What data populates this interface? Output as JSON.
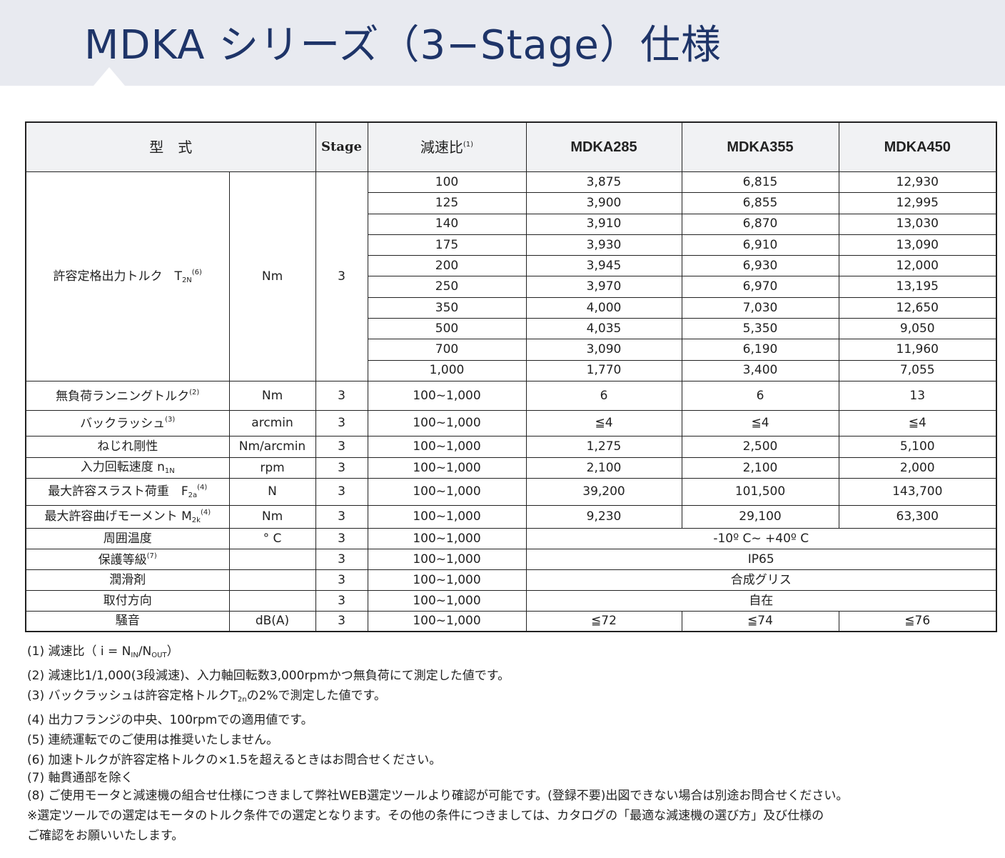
{
  "title": "MDKA シリーズ（3−Stage）仕様",
  "header": {
    "type": "型　式",
    "stage": "Stage",
    "ratio": "減速比",
    "ratio_note": "(1)",
    "models": [
      "MDKA285",
      "MDKA355",
      "MDKA450"
    ]
  },
  "torque": {
    "label": "許容定格出力トルク",
    "symbol": "T",
    "symbol_sub": "2N",
    "note": "(6)",
    "unit": "Nm",
    "stage": "3",
    "rows": [
      {
        "ratio": "100",
        "v": [
          "3,875",
          "6,815",
          "12,930"
        ]
      },
      {
        "ratio": "125",
        "v": [
          "3,900",
          "6,855",
          "12,995"
        ]
      },
      {
        "ratio": "140",
        "v": [
          "3,910",
          "6,870",
          "13,030"
        ]
      },
      {
        "ratio": "175",
        "v": [
          "3,930",
          "6,910",
          "13,090"
        ]
      },
      {
        "ratio": "200",
        "v": [
          "3,945",
          "6,930",
          "12,000"
        ]
      },
      {
        "ratio": "250",
        "v": [
          "3,970",
          "6,970",
          "13,195"
        ]
      },
      {
        "ratio": "350",
        "v": [
          "4,000",
          "7,030",
          "12,650"
        ]
      },
      {
        "ratio": "500",
        "v": [
          "4,035",
          "5,350",
          "9,050"
        ]
      },
      {
        "ratio": "700",
        "v": [
          "3,090",
          "6,190",
          "11,960"
        ]
      },
      {
        "ratio": "1,000",
        "v": [
          "1,770",
          "3,400",
          "7,055"
        ]
      }
    ]
  },
  "specs": [
    {
      "label": "無負荷ランニングトルク",
      "note": "(2)",
      "unit": "Nm",
      "stage": "3",
      "ratio": "100~1,000",
      "v": [
        "6",
        "6",
        "13"
      ]
    },
    {
      "label": "バックラッシュ",
      "note": "(3)",
      "unit": "arcmin",
      "stage": "3",
      "ratio": "100~1,000",
      "v": [
        "≦4",
        "≦4",
        "≦4"
      ]
    },
    {
      "label": "ねじれ剛性",
      "note": "",
      "unit": "Nm/arcmin",
      "stage": "3",
      "ratio": "100~1,000",
      "v": [
        "1,275",
        "2,500",
        "5,100"
      ]
    },
    {
      "label": "入力回転速度 n",
      "sub": "1N",
      "note": "",
      "unit": "rpm",
      "stage": "3",
      "ratio": "100~1,000",
      "v": [
        "2,100",
        "2,100",
        "2,000"
      ]
    },
    {
      "label": "最大許容スラスト荷重　F",
      "sub": "2a",
      "note": "(4)",
      "unit": "N",
      "stage": "3",
      "ratio": "100~1,000",
      "v": [
        "39,200",
        "101,500",
        "143,700"
      ]
    },
    {
      "label": "最大許容曲げモーメント M",
      "sub": "2k",
      "note": "(4)",
      "unit": "Nm",
      "stage": "3",
      "ratio": "100~1,000",
      "v": [
        "9,230",
        "29,100",
        "63,300"
      ]
    }
  ],
  "merged": [
    {
      "label": "周囲温度",
      "note": "",
      "unit": "° C",
      "stage": "3",
      "ratio": "100~1,000",
      "value": "-10º C~ +40º C"
    },
    {
      "label": "保護等級",
      "note": "(7)",
      "unit": "",
      "stage": "3",
      "ratio": "100~1,000",
      "value": "IP65"
    },
    {
      "label": "潤滑剤",
      "note": "",
      "unit": "",
      "stage": "3",
      "ratio": "100~1,000",
      "value": "合成グリス"
    },
    {
      "label": "取付方向",
      "note": "",
      "unit": "",
      "stage": "3",
      "ratio": "100~1,000",
      "value": "自在"
    }
  ],
  "noise": {
    "label": "騒音",
    "unit": "dB(A)",
    "stage": "3",
    "ratio": "100~1,000",
    "v": [
      "≦72",
      "≦74",
      "≦76"
    ]
  },
  "notes": {
    "n1_prefix": "(1) 減速比（ i = N",
    "n1_sub1": "IN",
    "n1_mid": "/N",
    "n1_sub2": "OUT",
    "n1_suffix": "）",
    "n2": "(2) 減速比1/1,000(3段減速)、入力軸回転数3,000rpmかつ無負荷にて測定した値です。",
    "n3_prefix": "(3) バックラッシュは許容定格トルクT",
    "n3_sub": "2n",
    "n3_suffix": "の2%で測定した値です。",
    "n4": "(4) 出力フランジの中央、100rpmでの適用値です。",
    "n5": "(5) 連続運転でのご使用は推奨いたしません。",
    "n6": "(6) 加速トルクが許容定格トルクの×1.5を超えるときはお問合せください。",
    "n7": "(7) 軸貫通部を除く",
    "n8": "(8) ご使用モータと減速機の組合せ仕様につきまして弊社WEB選定ツールより確認が可能です。(登録不要)出図できない場合は別途お問合せください。",
    "n9": "※選定ツールでの選定はモータのトルク条件での選定となります。その他の条件につきましては、カタログの「最適な減速機の選び方」及び仕様の",
    "n10": "ご確認をお願いいたします。"
  }
}
